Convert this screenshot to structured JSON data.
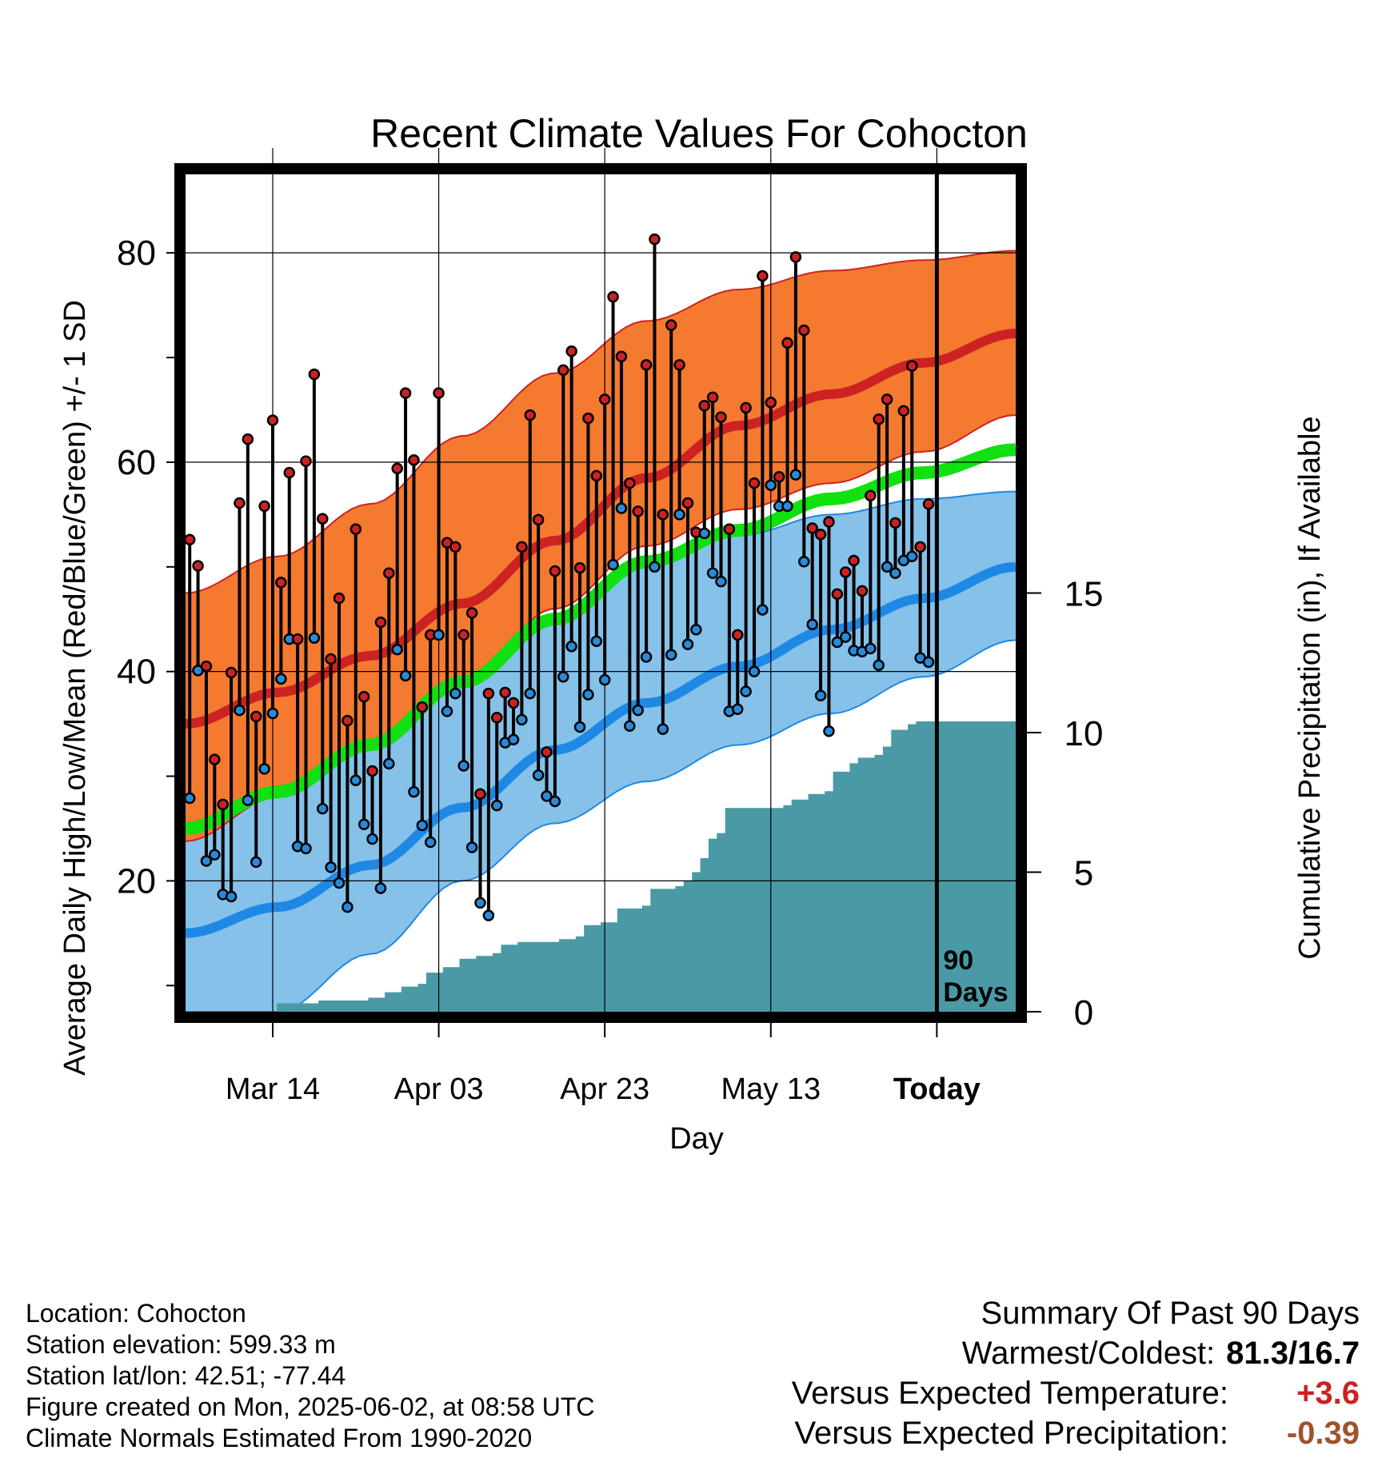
{
  "title": "Recent Climate Values For Cohocton",
  "chart_data": {
    "type": "line",
    "title": "Recent Climate Values For Cohocton",
    "xlabel": "Day",
    "ylabel": "Average Daily High/Low/Mean (Red/Blue/Green) +/- 1 SD",
    "y2label": "Cumulative Precipitation (in), If Available",
    "x_ticks": [
      "Mar 14",
      "Apr 03",
      "Apr 23",
      "May 13",
      "Today"
    ],
    "y_ticks": [
      20,
      40,
      60,
      80
    ],
    "y2_ticks": [
      0,
      5,
      10,
      15
    ],
    "ylim": [
      7.5,
      87.5
    ],
    "y2lim": [
      0,
      30
    ],
    "grid": true,
    "today_marker_label": [
      "90",
      "Days"
    ],
    "start_date": "Mar 04",
    "end_date": "Jun 12",
    "normals": {
      "high_mean": [
        35.0,
        38.0,
        41.5,
        46.5,
        52.5,
        58.5,
        63.5,
        66.5,
        69.5,
        72.3
      ],
      "high_sd_upper": [
        47.5,
        51.0,
        56.0,
        62.5,
        68.5,
        73.5,
        76.5,
        78.3,
        79.3,
        80.2
      ],
      "high_sd_lower": [
        23.8,
        28.0,
        33.5,
        38.5,
        46.0,
        52.0,
        55.5,
        58.0,
        61.0,
        64.5
      ],
      "mean": [
        25.0,
        28.5,
        33.0,
        39.0,
        45.0,
        50.5,
        53.5,
        56.5,
        59.0,
        61.2
      ],
      "low_mean": [
        15.0,
        17.5,
        21.5,
        27.0,
        32.5,
        37.0,
        40.5,
        44.0,
        47.0,
        50.0
      ],
      "low_sd_upper": [
        27.0,
        30.0,
        34.0,
        39.5,
        45.0,
        50.0,
        53.0,
        55.0,
        56.5,
        57.2
      ],
      "low_sd_lower": [
        7.5,
        7.5,
        13.0,
        20.0,
        25.5,
        29.5,
        33.0,
        36.0,
        39.5,
        43.0
      ]
    },
    "series": [
      {
        "name": "High",
        "color": "#cc2222",
        "values": [
          52.6,
          50.1,
          40.5,
          31.6,
          27.3,
          39.9,
          56.1,
          62.2,
          35.7,
          55.8,
          64.0,
          48.5,
          59.0,
          43.1,
          60.1,
          68.4,
          54.6,
          41.2,
          47.0,
          35.3,
          53.6,
          37.6,
          30.5,
          44.7,
          49.4,
          59.4,
          66.6,
          60.2,
          36.6,
          43.5,
          66.6,
          52.3,
          51.9,
          43.5,
          45.6,
          28.3,
          37.9,
          35.6,
          38.0,
          37.0,
          51.9,
          64.5,
          54.5,
          32.3,
          49.6,
          68.8,
          70.6,
          49.9,
          64.2,
          58.7,
          66.0,
          75.8,
          70.1,
          58.0,
          55.3,
          69.3,
          81.3,
          55.0,
          73.1,
          69.3,
          56.1,
          53.3,
          65.4,
          66.2,
          64.3,
          53.6,
          43.5,
          65.2,
          58.0,
          77.8,
          65.7,
          58.6,
          71.4,
          79.6,
          72.6,
          53.7,
          53.1,
          54.3,
          47.4,
          49.5,
          50.6,
          47.7,
          56.8,
          64.1,
          66.0,
          54.2,
          64.9,
          69.2,
          51.9,
          56.0
        ]
      },
      {
        "name": "Low",
        "color": "#2a8ad8",
        "values": [
          27.9,
          40.1,
          21.9,
          22.5,
          18.7,
          18.5,
          36.3,
          27.7,
          21.8,
          30.7,
          36.0,
          39.3,
          43.1,
          23.3,
          23.1,
          43.2,
          26.9,
          21.3,
          19.8,
          17.5,
          29.6,
          25.4,
          24.0,
          19.3,
          31.2,
          42.1,
          39.6,
          28.5,
          25.3,
          23.7,
          43.5,
          36.2,
          37.9,
          31.0,
          23.2,
          17.9,
          16.7,
          27.2,
          33.2,
          33.5,
          35.4,
          37.9,
          30.1,
          28.1,
          27.6,
          39.5,
          42.4,
          34.7,
          37.8,
          42.9,
          39.2,
          50.2,
          55.6,
          34.8,
          36.3,
          41.4,
          50.0,
          34.5,
          41.6,
          55.0,
          42.6,
          44.0,
          53.2,
          49.4,
          48.6,
          36.2,
          36.4,
          38.1,
          40.0,
          45.9,
          57.8,
          55.8,
          55.8,
          58.8,
          50.5,
          44.5,
          37.7,
          34.3,
          42.8,
          43.3,
          42.0,
          41.9,
          42.2,
          40.6,
          50.0,
          49.4,
          50.6,
          51.0,
          41.3,
          40.9
        ]
      }
    ],
    "precipitation": {
      "color": "#4a9aa5",
      "cumulative_points": [
        [
          0,
          0
        ],
        [
          10,
          0
        ],
        [
          11,
          0.3
        ],
        [
          13,
          0.3
        ],
        [
          16,
          0.4
        ],
        [
          22,
          0.5
        ],
        [
          24,
          0.7
        ],
        [
          26,
          0.9
        ],
        [
          28,
          1.0
        ],
        [
          29,
          1.4
        ],
        [
          31,
          1.6
        ],
        [
          33,
          1.9
        ],
        [
          35,
          2.0
        ],
        [
          37,
          2.1
        ],
        [
          38,
          2.4
        ],
        [
          40,
          2.5
        ],
        [
          43,
          2.5
        ],
        [
          45,
          2.6
        ],
        [
          47,
          2.7
        ],
        [
          48,
          3.1
        ],
        [
          50,
          3.2
        ],
        [
          52,
          3.7
        ],
        [
          55,
          3.8
        ],
        [
          56,
          4.4
        ],
        [
          59,
          4.5
        ],
        [
          60,
          4.7
        ],
        [
          61,
          5.0
        ],
        [
          62,
          5.5
        ],
        [
          63,
          6.2
        ],
        [
          64,
          6.4
        ],
        [
          65,
          7.3
        ],
        [
          68,
          7.3
        ],
        [
          72,
          7.4
        ],
        [
          73,
          7.6
        ],
        [
          75,
          7.8
        ],
        [
          77,
          7.9
        ],
        [
          78,
          8.6
        ],
        [
          80,
          8.9
        ],
        [
          81,
          9.1
        ],
        [
          83,
          9.2
        ],
        [
          84,
          9.5
        ],
        [
          85,
          10.1
        ],
        [
          87,
          10.3
        ],
        [
          88,
          10.4
        ],
        [
          90,
          10.4
        ],
        [
          99,
          10.4
        ]
      ]
    }
  },
  "footer": {
    "location": "Location: Cohocton",
    "elevation": "Station elevation: 599.33 m",
    "latlon": "Station lat/lon: 42.51; -77.44",
    "created": "Figure created on Mon, 2025-06-02, at 08:58 UTC",
    "normals": "Climate Normals Estimated From 1990-2020"
  },
  "summary": {
    "heading": "Summary Of Past 90 Days",
    "warm_cold_label": "Warmest/Coldest:",
    "warm_cold_value": "81.3/16.7",
    "temp_label": "Versus Expected Temperature:",
    "temp_value": "+3.6",
    "temp_color": "#cc2222",
    "precip_label": "Versus Expected Precipitation:",
    "precip_value": "-0.39",
    "precip_color": "#a0522d"
  }
}
